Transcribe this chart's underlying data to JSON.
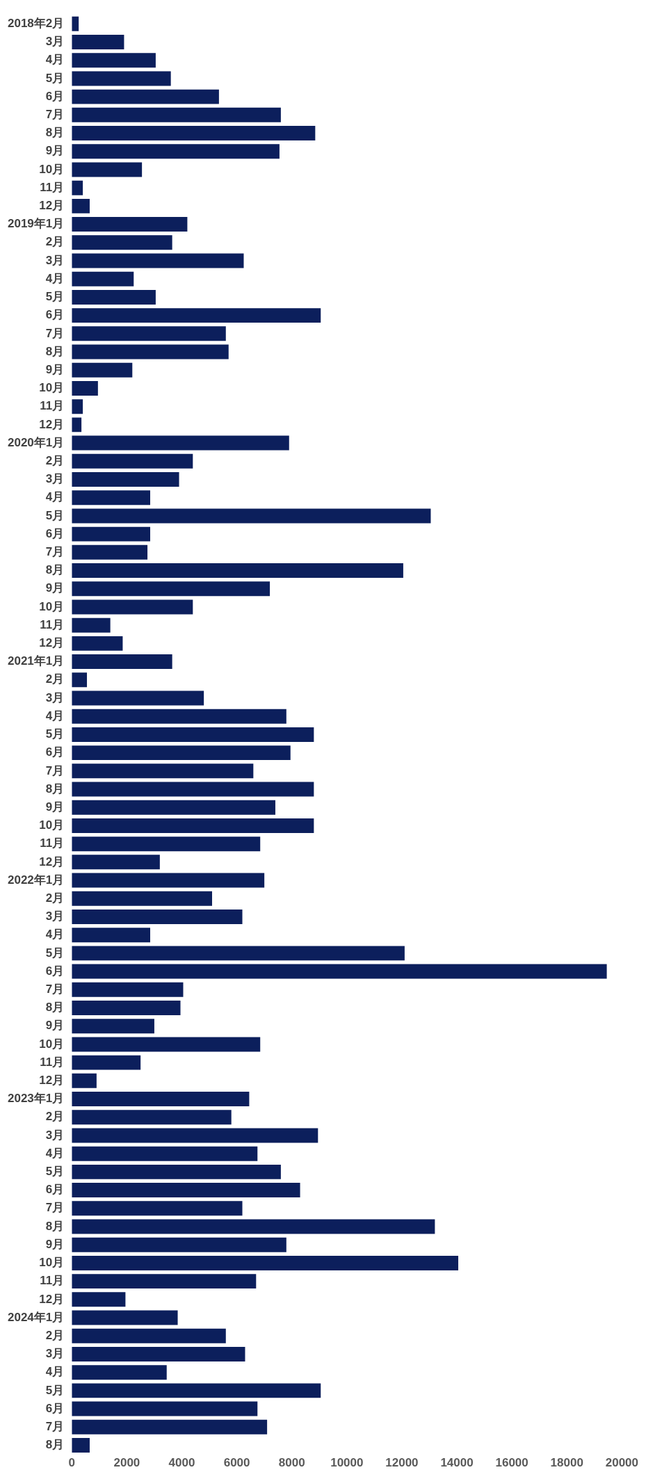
{
  "chart_data": {
    "type": "bar",
    "orientation": "horizontal",
    "color": "#0c1f5c",
    "categories": [
      "2018年2月",
      "3月",
      "4月",
      "5月",
      "6月",
      "7月",
      "8月",
      "9月",
      "10月",
      "11月",
      "12月",
      "2019年1月",
      "2月",
      "3月",
      "4月",
      "5月",
      "6月",
      "7月",
      "8月",
      "9月",
      "10月",
      "11月",
      "12月",
      "2020年1月",
      "2月",
      "3月",
      "4月",
      "5月",
      "6月",
      "7月",
      "8月",
      "9月",
      "10月",
      "11月",
      "12月",
      "2021年1月",
      "2月",
      "3月",
      "4月",
      "5月",
      "6月",
      "7月",
      "8月",
      "9月",
      "10月",
      "11月",
      "12月",
      "2022年1月",
      "2月",
      "3月",
      "4月",
      "5月",
      "6月",
      "7月",
      "8月",
      "9月",
      "10月",
      "11月",
      "12月",
      "2023年1月",
      "2月",
      "3月",
      "4月",
      "5月",
      "6月",
      "7月",
      "8月",
      "9月",
      "10月",
      "11月",
      "12月",
      "2024年1月",
      "2月",
      "3月",
      "4月",
      "5月",
      "6月",
      "7月",
      "8月"
    ],
    "values": [
      250,
      1900,
      3050,
      3600,
      5350,
      7600,
      8850,
      7550,
      2550,
      400,
      650,
      4200,
      3650,
      6250,
      2250,
      3050,
      9050,
      5600,
      5700,
      2200,
      950,
      400,
      350,
      7900,
      4400,
      3900,
      2850,
      13050,
      2850,
      2750,
      12050,
      7200,
      4400,
      1400,
      1850,
      3650,
      550,
      4800,
      7800,
      8800,
      7950,
      6600,
      8800,
      7400,
      8800,
      6850,
      3200,
      7000,
      5100,
      6200,
      2850,
      12100,
      19450,
      4050,
      3950,
      3000,
      6850,
      2500,
      900,
      6450,
      5800,
      8950,
      6750,
      7600,
      8300,
      6200,
      13200,
      7800,
      14050,
      6700,
      1950,
      3850,
      5600,
      6300,
      3450,
      9050,
      6750,
      7100,
      650
    ],
    "xlim": [
      0,
      20000
    ],
    "xticks": [
      0,
      2000,
      4000,
      6000,
      8000,
      10000,
      12000,
      14000,
      16000,
      18000,
      20000
    ]
  }
}
